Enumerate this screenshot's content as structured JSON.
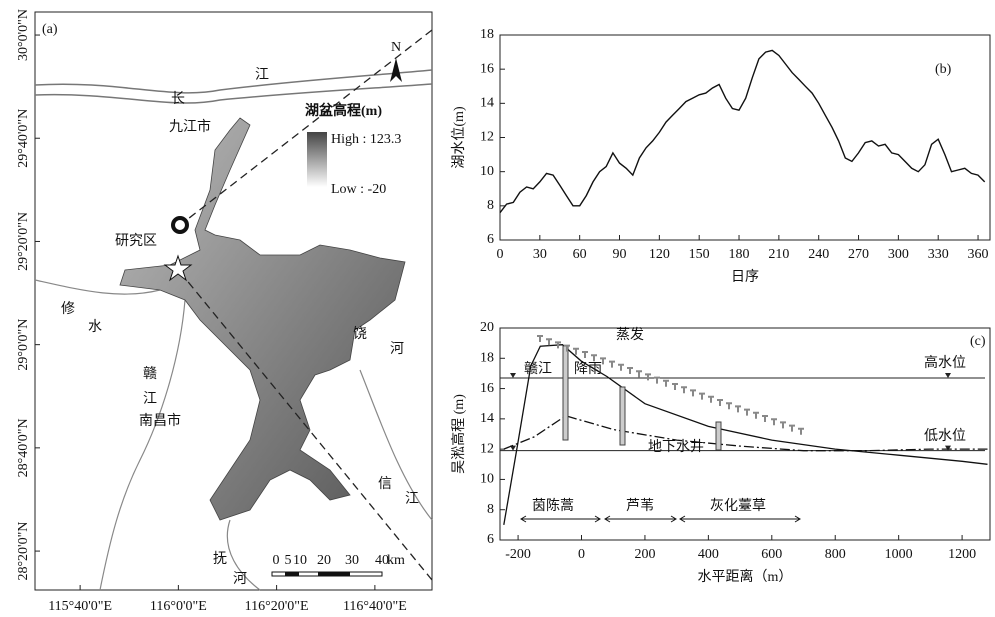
{
  "chart_data": [
    {
      "type": "map",
      "label": "(a)",
      "xlim": [
        115.5136,
        116.8605
      ],
      "ylim": [
        28.2076,
        30.0744
      ],
      "xticks": [
        {
          "value": 115.6667,
          "label": "115°40'0\"E"
        },
        {
          "value": 116,
          "label": "116°0'0\"E"
        },
        {
          "value": 116.3333,
          "label": "116°20'0\"E"
        },
        {
          "value": 116.6667,
          "label": "116°40'0\"E"
        }
      ],
      "yticks": [
        {
          "value": 30,
          "label": "30°0'0\"N"
        },
        {
          "value": 29.6667,
          "label": "29°40'0\"N"
        },
        {
          "value": 29.3333,
          "label": "29°20'0\"N"
        },
        {
          "value": 29,
          "label": "29°0'0\"N"
        },
        {
          "value": 28.6667,
          "label": "28°40'0\"N"
        },
        {
          "value": 28.3333,
          "label": "28°20'0\"N"
        }
      ],
      "legend_title": "湖盆高程(m)",
      "legend_high": "High : 123.3",
      "legend_low": "Low : -20",
      "annotations": [
        "长",
        "江",
        "九江市",
        "研究区",
        "修",
        "水",
        "赣",
        "江",
        "南昌市",
        "饶",
        "河",
        "信",
        "江",
        "抚",
        "河",
        "N"
      ],
      "scale_labels": [
        "0",
        "5",
        "10",
        "20",
        "30",
        "40",
        "km"
      ]
    },
    {
      "type": "line",
      "label": "(b)",
      "xlabel": "日序",
      "ylabel": "湖水位(m)",
      "xlim": [
        0,
        369
      ],
      "ylim": [
        6,
        18
      ],
      "xticks": [
        0,
        30,
        60,
        90,
        120,
        150,
        180,
        210,
        240,
        270,
        300,
        330,
        360
      ],
      "yticks": [
        6,
        8,
        10,
        12,
        14,
        16,
        18
      ],
      "color": "#111",
      "x": [
        0,
        5,
        10,
        15,
        20,
        25,
        30,
        35,
        40,
        45,
        50,
        55,
        60,
        65,
        70,
        75,
        80,
        85,
        90,
        95,
        100,
        105,
        110,
        115,
        120,
        125,
        130,
        135,
        140,
        145,
        150,
        155,
        160,
        165,
        170,
        175,
        180,
        185,
        190,
        195,
        200,
        205,
        210,
        215,
        220,
        225,
        230,
        235,
        240,
        245,
        250,
        255,
        260,
        265,
        270,
        275,
        280,
        285,
        290,
        295,
        300,
        305,
        310,
        315,
        320,
        325,
        330,
        335,
        340,
        345,
        350,
        355,
        360,
        365
      ],
      "values": [
        7.6,
        8.1,
        8.2,
        8.8,
        9.1,
        9.0,
        9.4,
        9.9,
        9.8,
        9.2,
        8.6,
        8.0,
        8.0,
        8.6,
        9.4,
        10.0,
        10.3,
        11.1,
        10.5,
        10.2,
        9.8,
        10.8,
        11.4,
        11.8,
        12.3,
        12.9,
        13.3,
        13.7,
        14.1,
        14.3,
        14.5,
        14.6,
        14.9,
        15.1,
        14.3,
        13.7,
        13.6,
        14.3,
        15.5,
        16.6,
        17.0,
        17.1,
        16.8,
        16.3,
        15.8,
        15.4,
        15.0,
        14.6,
        14.0,
        13.3,
        12.6,
        11.8,
        10.8,
        10.6,
        11.1,
        11.7,
        11.8,
        11.5,
        11.6,
        11.1,
        11.0,
        10.6,
        10.2,
        10.0,
        10.4,
        11.6,
        11.9,
        11.0,
        10.0,
        10.1,
        10.2,
        9.9,
        9.8,
        9.4
      ]
    },
    {
      "type": "profile",
      "label": "(c)",
      "xlabel": "水平距离（m）",
      "ylabel": "吴淞高程 (m)",
      "xlim": [
        -257,
        1288
      ],
      "ylim": [
        6,
        20
      ],
      "xticks": [
        -200,
        0,
        200,
        400,
        600,
        800,
        1000,
        1200
      ],
      "yticks": [
        6,
        8,
        10,
        12,
        14,
        16,
        18,
        20
      ],
      "series": [
        {
          "x": [
            -245,
            -200,
            -160,
            -130,
            -60,
            0,
            80,
            200,
            400,
            600,
            800,
            1000,
            1200,
            1280
          ],
          "values": [
            7,
            12.5,
            17.5,
            18.8,
            18.9,
            17.8,
            16.8,
            15,
            13.5,
            12.6,
            12.0,
            11.6,
            11.2,
            11.0
          ]
        },
        {
          "x": [
            -245,
            -150,
            -50,
            100,
            300,
            500,
            700,
            900,
            1100,
            1280
          ],
          "values": [
            12.0,
            12.8,
            14.2,
            13.3,
            12.6,
            12.2,
            11.9,
            11.9,
            12.0,
            12.0
          ]
        }
      ],
      "levels": [
        {
          "label": "高水位",
          "value": 16.7
        },
        {
          "label": "低水位",
          "value": 11.9
        }
      ],
      "annotations": [
        "蒸发",
        "赣江",
        "降雨",
        "地下水井",
        "茵陈蒿",
        "芦苇",
        "灰化薹草"
      ]
    }
  ]
}
